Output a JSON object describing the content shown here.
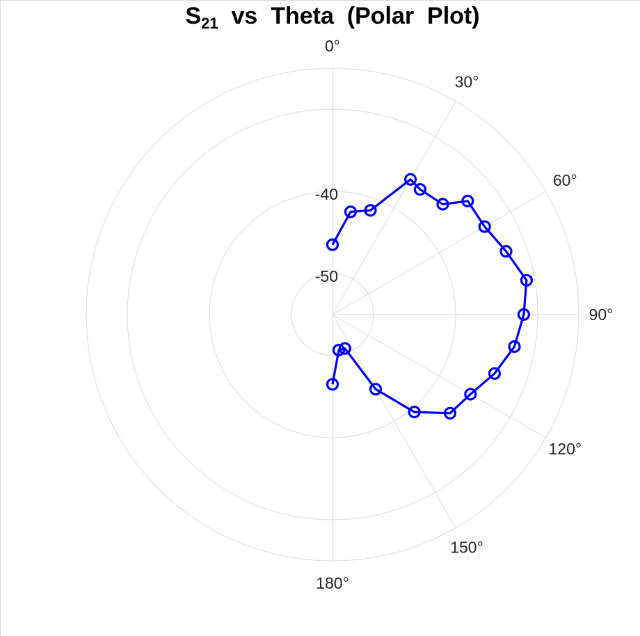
{
  "chart_data": {
    "type": "line",
    "coordinate_system": "polar",
    "title": {
      "main": "S",
      "sub": "21",
      "rest": "  vs  Theta  (Polar  Plot)"
    },
    "theta_zero_location": "top",
    "theta_direction": "clockwise",
    "theta_ticks": [
      "0°",
      "30°",
      "60°",
      "90°",
      "120°",
      "150°",
      "180°"
    ],
    "theta_tick_values": [
      0,
      30,
      60,
      90,
      120,
      150,
      180
    ],
    "theta_range": [
      0,
      180
    ],
    "r_range": [
      -55,
      -25
    ],
    "r_gridlines": [
      -50,
      -40,
      -30
    ],
    "r_tick_labels": [
      {
        "value": -50,
        "label": "-50"
      },
      {
        "value": -40,
        "label": "-40"
      }
    ],
    "grid": true,
    "legend": "none",
    "color": "#0000ff",
    "marker": "circle",
    "series": [
      {
        "theta": [
          0,
          10,
          20,
          30,
          35,
          45,
          50,
          60,
          70,
          80,
          90,
          100,
          110,
          120,
          130,
          140,
          150,
          160,
          170,
          180
        ],
        "r": [
          -46.5,
          -42.3,
          -41.5,
          -36.0,
          -36.4,
          -36.0,
          -33.5,
          -33.6,
          -32.5,
          -31.0,
          -31.7,
          -32.5,
          -34.0,
          -35.6,
          -36.3,
          -39.5,
          -44.5,
          -50.6,
          -50.6,
          -46.5
        ]
      }
    ]
  }
}
